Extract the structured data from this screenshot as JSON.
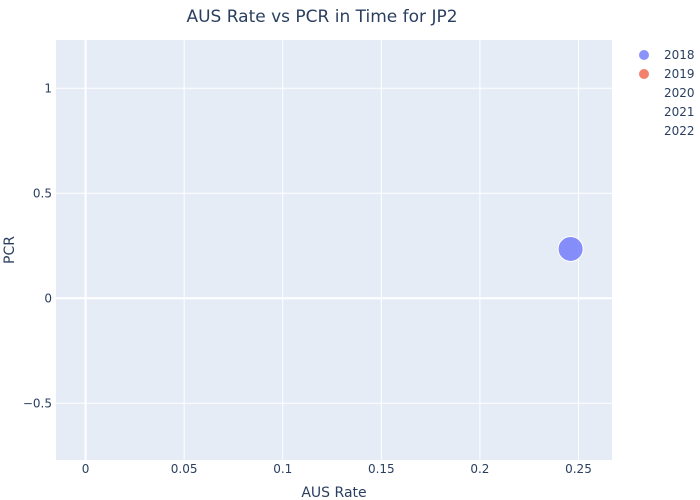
{
  "chart_data": {
    "type": "scatter",
    "title": "AUS Rate vs PCR in Time for JP2",
    "xlabel": "AUS Rate",
    "ylabel": "PCR",
    "xlim": [
      -0.015,
      0.267
    ],
    "ylim": [
      -0.77,
      1.23
    ],
    "x_ticks": [
      0,
      0.05,
      0.1,
      0.15,
      0.2,
      0.25
    ],
    "x_tick_labels": [
      "0",
      "0.05",
      "0.1",
      "0.15",
      "0.2",
      "0.25"
    ],
    "y_ticks": [
      -0.5,
      0,
      0.5,
      1
    ],
    "y_tick_labels": [
      "−0.5",
      "0",
      "0.5",
      "1"
    ],
    "grid": true,
    "legend_position": "right",
    "series": [
      {
        "name": "2018",
        "color": "#636efa",
        "points": [
          {
            "x": 0.246,
            "y": 0.235
          }
        ]
      },
      {
        "name": "2019",
        "color": "#ef553b",
        "points": []
      },
      {
        "name": "2020",
        "color": "",
        "points": []
      },
      {
        "name": "2021",
        "color": "",
        "points": []
      },
      {
        "name": "2022",
        "color": "",
        "points": []
      }
    ],
    "colors": {
      "plot_bg": "#e5ecf6",
      "grid": "#ffffff",
      "text": "#2a3f5f"
    }
  }
}
